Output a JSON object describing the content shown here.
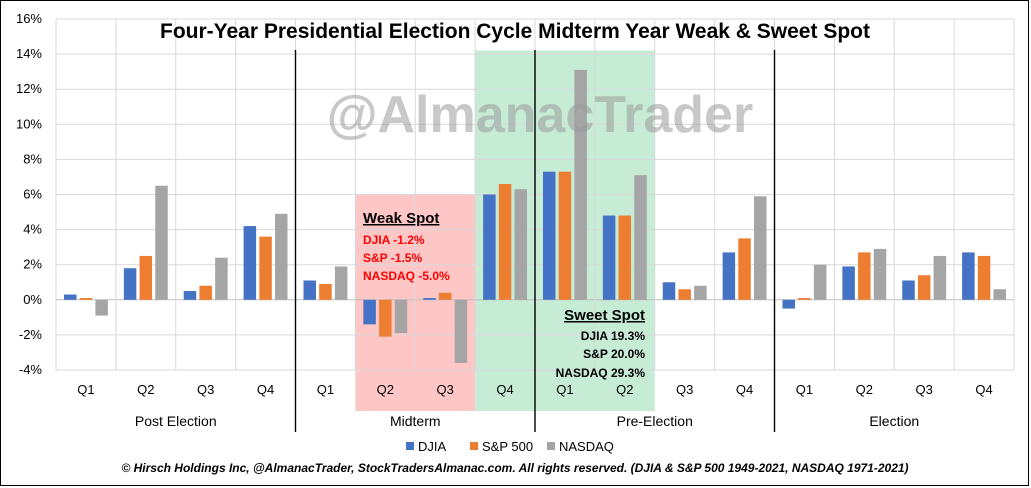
{
  "chart_data": {
    "type": "bar",
    "title": "Four-Year Presidential Election Cycle Midterm Year Weak & Sweet Spot",
    "watermark": "@AlmanacTrader",
    "ylim": [
      -4,
      16
    ],
    "yticks": [
      -4,
      -2,
      0,
      2,
      4,
      6,
      8,
      10,
      12,
      14,
      16
    ],
    "ytick_labels": [
      "-4%",
      "-2%",
      "0%",
      "2%",
      "4%",
      "6%",
      "8%",
      "10%",
      "12%",
      "14%",
      "16%"
    ],
    "categories": [
      "Q1",
      "Q2",
      "Q3",
      "Q4",
      "Q1",
      "Q2",
      "Q3",
      "Q4",
      "Q1",
      "Q2",
      "Q3",
      "Q4",
      "Q1",
      "Q2",
      "Q3",
      "Q4"
    ],
    "groups": [
      "Post Election",
      "Midterm",
      "Pre-Election",
      "Election"
    ],
    "series": [
      {
        "name": "DJIA",
        "color": "#4472c4",
        "values": [
          0.3,
          1.8,
          0.5,
          4.2,
          1.1,
          -1.4,
          0.1,
          6.0,
          7.3,
          4.8,
          1.0,
          2.7,
          -0.5,
          1.9,
          1.1,
          2.7
        ]
      },
      {
        "name": "S&P 500",
        "color": "#ed7d31",
        "values": [
          0.1,
          2.5,
          0.8,
          3.6,
          0.9,
          -2.1,
          0.4,
          6.6,
          7.3,
          4.8,
          0.6,
          3.5,
          0.1,
          2.7,
          1.4,
          2.5
        ]
      },
      {
        "name": "NASDAQ",
        "color": "#a5a5a5",
        "values": [
          -0.9,
          6.5,
          2.4,
          4.9,
          1.9,
          -1.9,
          -3.6,
          6.3,
          13.1,
          7.1,
          0.8,
          5.9,
          2.0,
          2.9,
          2.5,
          0.6
        ]
      }
    ],
    "annotations": {
      "weak": {
        "title": "Weak Spot",
        "lines": [
          "DJIA -1.2%",
          "S&P -1.5%",
          "NASDAQ -5.0%"
        ],
        "color": "#ff0000",
        "fill": "#ffb3b3"
      },
      "sweet": {
        "title": "Sweet Spot",
        "lines": [
          "DJIA 19.3%",
          "S&P 20.0%",
          "NASDAQ 29.3%"
        ],
        "color": "#000000",
        "fill": "#b3e6c8"
      }
    },
    "footer": "© Hirsch Holdings Inc, @AlmanacTrader,  StockTradersAlmanac.com.  All rights reserved.  (DJIA & S&P 500 1949-2021,  NASDAQ 1971-2021)"
  }
}
